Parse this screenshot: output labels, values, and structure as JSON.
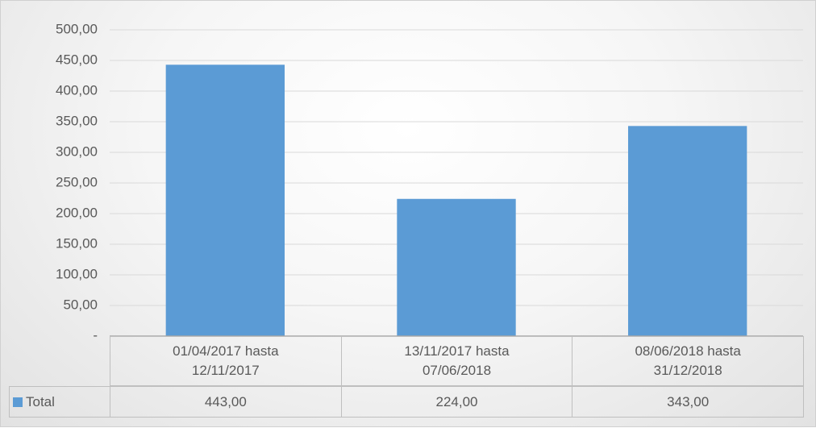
{
  "chart_data": {
    "type": "bar",
    "categories": [
      "01/04/2017 hasta 12/11/2017",
      "13/11/2017 hasta 07/06/2018",
      "08/06/2018 hasta 31/12/2018"
    ],
    "series": [
      {
        "name": "Total",
        "color": "#5b9bd5",
        "values": [
          443,
          224,
          343
        ],
        "value_labels": [
          "443,00",
          "224,00",
          "343,00"
        ]
      }
    ],
    "ylim": [
      0,
      500
    ],
    "yticks": [
      {
        "value": 0,
        "label": "-"
      },
      {
        "value": 50,
        "label": "50,00"
      },
      {
        "value": 100,
        "label": "100,00"
      },
      {
        "value": 150,
        "label": "150,00"
      },
      {
        "value": 200,
        "label": "200,00"
      },
      {
        "value": 250,
        "label": "250,00"
      },
      {
        "value": 300,
        "label": "300,00"
      },
      {
        "value": 350,
        "label": "350,00"
      },
      {
        "value": 400,
        "label": "400,00"
      },
      {
        "value": 450,
        "label": "450,00"
      },
      {
        "value": 500,
        "label": "500,00"
      }
    ],
    "grid": true
  }
}
